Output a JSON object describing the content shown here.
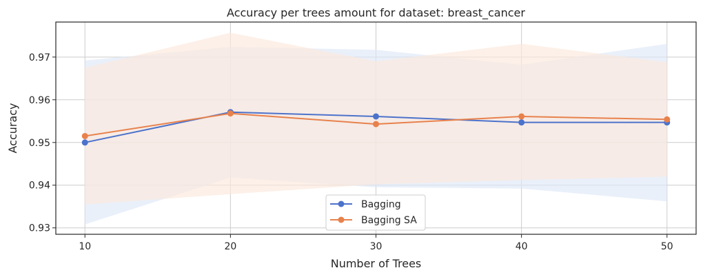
{
  "chart_data": {
    "type": "line",
    "title": "Accuracy per trees amount for dataset: breast_cancer",
    "xlabel": "Number of Trees",
    "ylabel": "Accuracy",
    "x": [
      10,
      20,
      30,
      40,
      50
    ],
    "xticks": [
      "10",
      "20",
      "30",
      "40",
      "50"
    ],
    "yticks": [
      "0.93",
      "0.94",
      "0.95",
      "0.96",
      "0.97"
    ],
    "xlim": [
      8,
      52
    ],
    "ylim": [
      0.9285,
      0.9782
    ],
    "grid": true,
    "legend_position": "bottom-center",
    "series": [
      {
        "name": "Bagging",
        "color": "#4c72cb",
        "band_color": "#dfe8f8",
        "values": [
          0.95,
          0.9571,
          0.9561,
          0.9547,
          0.9547
        ],
        "lower": [
          0.9308,
          0.9418,
          0.9395,
          0.9392,
          0.9362
        ],
        "upper": [
          0.9692,
          0.9724,
          0.9717,
          0.9682,
          0.9731
        ]
      },
      {
        "name": "Bagging SA",
        "color": "#e8814c",
        "band_color": "#fce8dc",
        "values": [
          0.9515,
          0.9568,
          0.9543,
          0.9561,
          0.9554
        ],
        "lower": [
          0.9355,
          0.9379,
          0.9402,
          0.9412,
          0.942
        ],
        "upper": [
          0.9675,
          0.9757,
          0.969,
          0.9731,
          0.9688
        ]
      }
    ]
  }
}
